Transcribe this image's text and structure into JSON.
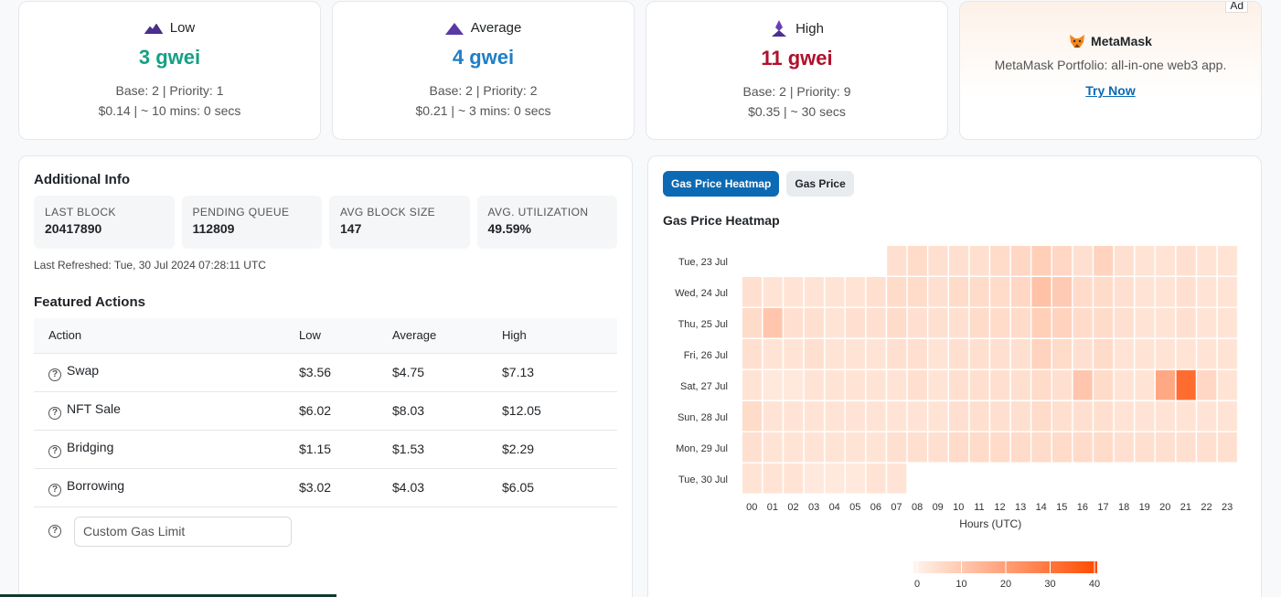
{
  "gas_cards": [
    {
      "tier": "Low",
      "price": "3 gwei",
      "color": "#16a085",
      "line1": "Base: 2 | Priority: 1",
      "line2": "$0.14 | ~ 10 mins: 0 secs"
    },
    {
      "tier": "Average",
      "price": "4 gwei",
      "color": "#1f7fc6",
      "line1": "Base: 2 | Priority: 2",
      "line2": "$0.21 | ~ 3 mins: 0 secs"
    },
    {
      "tier": "High",
      "price": "11 gwei",
      "color": "#b0102b",
      "line1": "Base: 2 | Priority: 9",
      "line2": "$0.35 | ~ 30 secs"
    }
  ],
  "ad": {
    "tag": "Ad",
    "title": "MetaMask",
    "desc": "MetaMask Portfolio: all-in-one web3 app.",
    "link": "Try Now"
  },
  "info": {
    "title": "Additional Info",
    "stats": [
      {
        "label": "LAST BLOCK",
        "value": "20417890"
      },
      {
        "label": "PENDING QUEUE",
        "value": "112809"
      },
      {
        "label": "AVG BLOCK SIZE",
        "value": "147"
      },
      {
        "label": "AVG. UTILIZATION",
        "value": "49.59%"
      }
    ],
    "refreshed": "Last Refreshed: Tue, 30 Jul 2024 07:28:11 UTC"
  },
  "featured": {
    "title": "Featured Actions",
    "headers": [
      "Action",
      "Low",
      "Average",
      "High"
    ],
    "rows": [
      [
        "Swap",
        "$3.56",
        "$4.75",
        "$7.13"
      ],
      [
        "NFT Sale",
        "$6.02",
        "$8.03",
        "$12.05"
      ],
      [
        "Bridging",
        "$1.15",
        "$1.53",
        "$2.29"
      ],
      [
        "Borrowing",
        "$3.02",
        "$4.03",
        "$6.05"
      ]
    ],
    "custom_placeholder": "Custom Gas Limit"
  },
  "heatmap": {
    "tabs": [
      "Gas Price Heatmap",
      "Gas Price"
    ],
    "active_tab": 0,
    "title": "Gas Price Heatmap"
  },
  "chart_data": {
    "type": "heatmap",
    "title": "Gas Price Heatmap",
    "xlabel": "Hours (UTC)",
    "ylabel": "",
    "x": [
      "00",
      "01",
      "02",
      "03",
      "04",
      "05",
      "06",
      "07",
      "08",
      "09",
      "10",
      "11",
      "12",
      "13",
      "14",
      "15",
      "16",
      "17",
      "18",
      "19",
      "20",
      "21",
      "22",
      "23"
    ],
    "y": [
      "Tue, 23 Jul",
      "Wed, 24 Jul",
      "Thu, 25 Jul",
      "Fri, 26 Jul",
      "Sat, 27 Jul",
      "Sun, 28 Jul",
      "Mon, 29 Jul",
      "Tue, 30 Jul"
    ],
    "values": [
      [
        null,
        null,
        null,
        null,
        null,
        null,
        null,
        5,
        6,
        5,
        5,
        5,
        6,
        7,
        9,
        7,
        5,
        8,
        5,
        4,
        4,
        5,
        4,
        4
      ],
      [
        5,
        4,
        4,
        4,
        4,
        4,
        5,
        6,
        6,
        5,
        6,
        6,
        6,
        7,
        12,
        10,
        6,
        6,
        5,
        4,
        4,
        5,
        4,
        4
      ],
      [
        6,
        11,
        5,
        5,
        4,
        5,
        5,
        6,
        5,
        5,
        5,
        6,
        6,
        6,
        9,
        8,
        6,
        6,
        5,
        4,
        4,
        5,
        4,
        4
      ],
      [
        5,
        4,
        4,
        5,
        4,
        4,
        4,
        5,
        5,
        4,
        5,
        5,
        5,
        5,
        8,
        6,
        5,
        6,
        4,
        4,
        4,
        4,
        4,
        4
      ],
      [
        4,
        3,
        3,
        4,
        4,
        4,
        4,
        4,
        5,
        4,
        5,
        5,
        5,
        5,
        6,
        5,
        11,
        6,
        4,
        4,
        18,
        32,
        7,
        4
      ],
      [
        6,
        4,
        4,
        4,
        4,
        4,
        4,
        4,
        4,
        4,
        5,
        5,
        5,
        5,
        6,
        5,
        5,
        5,
        4,
        4,
        4,
        4,
        4,
        4
      ],
      [
        5,
        4,
        4,
        4,
        4,
        4,
        4,
        5,
        5,
        5,
        6,
        6,
        6,
        6,
        6,
        6,
        6,
        6,
        5,
        5,
        5,
        5,
        5,
        5
      ],
      [
        4,
        4,
        4,
        3,
        3,
        3,
        4,
        4,
        null,
        null,
        null,
        null,
        null,
        null,
        null,
        null,
        null,
        null,
        null,
        null,
        null,
        null,
        null,
        null
      ]
    ],
    "scale": {
      "min": 0,
      "max": 40,
      "ticks": [
        "0",
        "10",
        "20",
        "30",
        "40"
      ],
      "color_low": "#fff5ee",
      "color_high": "#ff4a00"
    }
  }
}
